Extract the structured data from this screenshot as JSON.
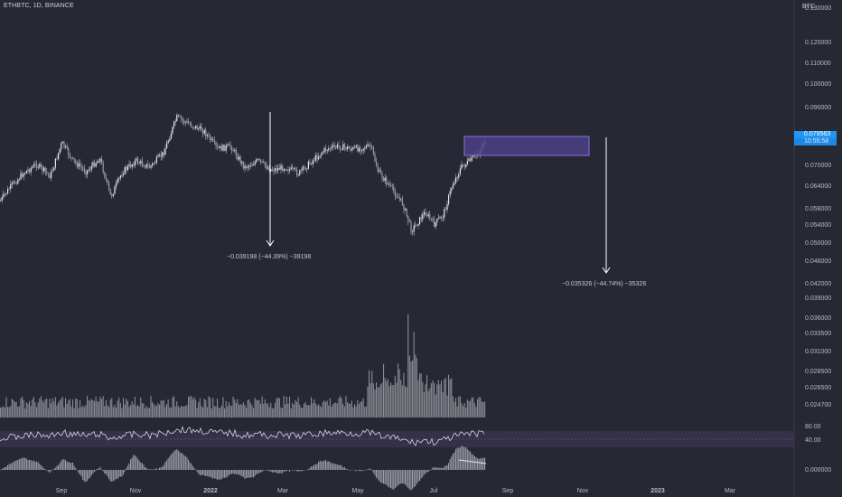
{
  "header": {
    "symbol_label": "ETHBTC, 1D, BINANCE",
    "unit_label": "BTC"
  },
  "price_labels": {
    "current_price": "0.079563",
    "countdown": "10:55:58"
  },
  "colors": {
    "background": "#262833",
    "candle": "#d6d6d6",
    "volume": "#8a8c94",
    "box_fill": "#4c3f86",
    "box_border": "#8b6fe0",
    "rsi_band": "#3a3350",
    "price_pill": "#2196f3",
    "arrow": "#ffffff"
  },
  "chart_data": {
    "type": "candlestick",
    "title": "ETHBTC, 1D, BINANCE",
    "y_unit": "BTC",
    "x_ticks": [
      "Sep",
      "Nov",
      "2022",
      "Mar",
      "May",
      "Jul",
      "Sep",
      "Nov",
      "2023",
      "Mar"
    ],
    "y_ticks": [
      "0.130000",
      "0.120000",
      "0.110000",
      "0.100000",
      "0.090000",
      "0.079563",
      "0.070000",
      "0.064000",
      "0.058000",
      "0.054000",
      "0.050000",
      "0.046000",
      "0.042000",
      "0.039000",
      "0.036000",
      "0.033500",
      "0.031000",
      "0.028500",
      "0.026500",
      "0.024700"
    ],
    "rsi_ticks": [
      "80.00",
      "40.00"
    ],
    "osc_ticks": [
      "0.000000"
    ],
    "price_close_path": [
      {
        "month": "Aug 2021",
        "price": 0.058
      },
      {
        "month": "Sep 2021",
        "price": 0.068
      },
      {
        "month": "Sep 2021",
        "price": 0.076
      },
      {
        "month": "Oct 2021",
        "price": 0.064
      },
      {
        "month": "Nov 2021",
        "price": 0.075
      },
      {
        "month": "Dec 2021",
        "price": 0.087
      },
      {
        "month": "Jan 2022",
        "price": 0.08
      },
      {
        "month": "Feb 2022",
        "price": 0.069
      },
      {
        "month": "Mar 2022",
        "price": 0.068
      },
      {
        "month": "Apr 2022",
        "price": 0.076
      },
      {
        "month": "May 2022",
        "price": 0.073
      },
      {
        "month": "Jun 2022",
        "price": 0.051
      },
      {
        "month": "Jul 2022",
        "price": 0.058
      },
      {
        "month": "Aug 2022",
        "price": 0.0795
      }
    ],
    "annotations": [
      {
        "text": "−0.039198 (−44.39%) −39198"
      },
      {
        "text": "−0.035326 (−44.74%) −35326"
      }
    ],
    "resistance_zone": {
      "from_month": "Aug 2022",
      "to_month": "Nov 2022"
    },
    "grid": false
  }
}
